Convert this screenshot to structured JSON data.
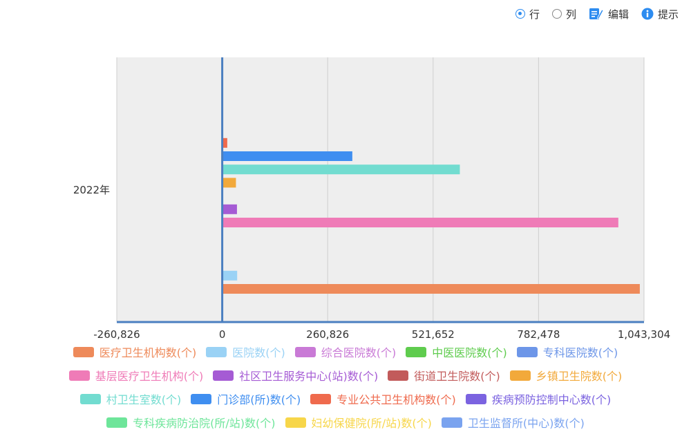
{
  "toolbar": {
    "row_label": "行",
    "col_label": "列",
    "edit_label": "编辑",
    "tip_label": "提示",
    "selected": "row",
    "accent": "#2d8cf0"
  },
  "chart_data": {
    "type": "bar",
    "orientation": "horizontal",
    "categories": [
      "2022年"
    ],
    "xlim": [
      -260826,
      1043304
    ],
    "xticks": [
      "-260,826",
      "0",
      "260,826",
      "521,652",
      "782,478",
      "1,043,304"
    ],
    "grid": true,
    "legend_position": "bottom",
    "series": [
      {
        "name": "医疗卫生机构数(个)",
        "color": "#ee8a5a",
        "values": [
          1032918
        ]
      },
      {
        "name": "医院数(个)",
        "color": "#9ad2f5",
        "values": [
          36976
        ]
      },
      {
        "name": "综合医院数(个)",
        "color": "#c97ad6",
        "values": [
          0
        ]
      },
      {
        "name": "中医医院数(个)",
        "color": "#5fcc4e",
        "values": [
          0
        ]
      },
      {
        "name": "专科医院数(个)",
        "color": "#6d96e8",
        "values": [
          0
        ]
      },
      {
        "name": "基层医疗卫生机构(个)",
        "color": "#ef7bb7",
        "values": [
          979768
        ]
      },
      {
        "name": "社区卫生服务中心(站)数(个)",
        "color": "#a55bd4",
        "values": [
          36448
        ]
      },
      {
        "name": "街道卫生院数(个)",
        "color": "#c25b5b",
        "values": [
          0
        ]
      },
      {
        "name": "乡镇卫生院数(个)",
        "color": "#f2a93b",
        "values": [
          33917
        ]
      },
      {
        "name": "村卫生室数(个)",
        "color": "#72dcd0",
        "values": [
          587749
        ]
      },
      {
        "name": "门诊部(所)数(个)",
        "color": "#3f8ef0",
        "values": [
          321775
        ]
      },
      {
        "name": "专业公共卫生机构数(个)",
        "color": "#ef6a4d",
        "values": [
          12436
        ]
      },
      {
        "name": "疾病预防控制中心数(个)",
        "color": "#7b63e0",
        "values": [
          0
        ]
      },
      {
        "name": "专科疾病防治院(所/站)数(个)",
        "color": "#6ee59a",
        "values": [
          0
        ]
      },
      {
        "name": "妇幼保健院(所/站)数(个)",
        "color": "#f7d64a",
        "values": [
          0
        ]
      },
      {
        "name": "卫生监督所(中心)数(个)",
        "color": "#7aa3ef",
        "values": [
          0
        ]
      }
    ],
    "legend_rows": [
      [
        0,
        1,
        2,
        3,
        4
      ],
      [
        5,
        6,
        7,
        8
      ],
      [
        9,
        10,
        11,
        12
      ],
      [
        13,
        14,
        15
      ]
    ]
  }
}
